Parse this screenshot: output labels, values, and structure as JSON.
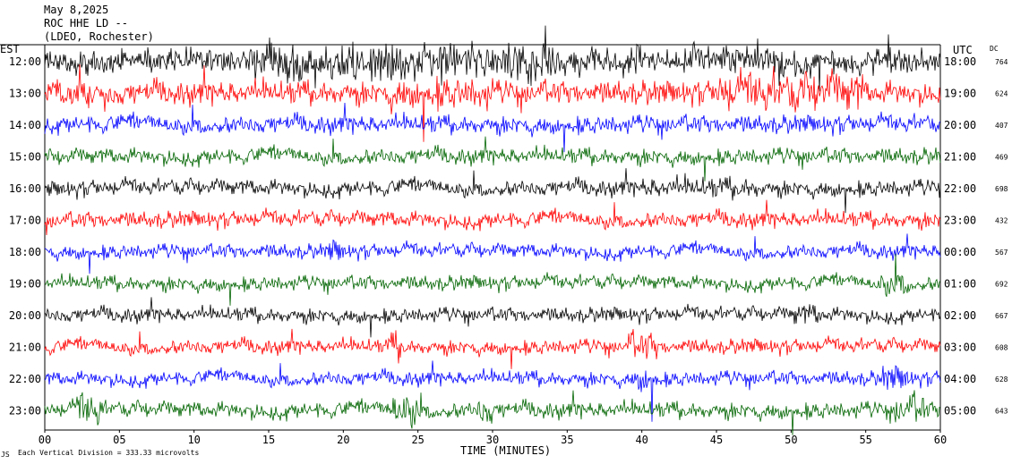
{
  "header": {
    "date": "May 8,2025",
    "station": "ROC HHE LD --",
    "location": "(LDEO, Rochester)"
  },
  "left_axis_label": "EST",
  "right_axis_label": "UTC",
  "dc_label": "DC",
  "xlabel": "TIME (MINUTES)",
  "footer": "Each Vertical Division = 333.33 microvolts",
  "logo_mark": "JS",
  "chart_data": {
    "type": "line",
    "subtype": "helicorder",
    "xlim": [
      0,
      60
    ],
    "x_ticks": [
      "00",
      "05",
      "10",
      "15",
      "20",
      "25",
      "30",
      "35",
      "40",
      "45",
      "50",
      "55",
      "60"
    ],
    "trace_colors": [
      "#000000",
      "#ff0000",
      "#0000ff",
      "#006400"
    ],
    "rows": [
      {
        "est": "12:00",
        "utc": "18:00",
        "dc": "764",
        "color": "#000000",
        "amp": 1.4,
        "bursts": [
          [
            14,
            34,
            1.6
          ],
          [
            45,
            52,
            1.3
          ]
        ]
      },
      {
        "est": "13:00",
        "utc": "19:00",
        "dc": "624",
        "color": "#ff0000",
        "amp": 1.3,
        "bursts": [
          [
            23,
            30,
            1.4
          ],
          [
            45,
            55,
            1.8
          ]
        ]
      },
      {
        "est": "14:00",
        "utc": "20:00",
        "dc": "407",
        "color": "#0000ff",
        "amp": 1.0,
        "bursts": []
      },
      {
        "est": "15:00",
        "utc": "21:00",
        "dc": "469",
        "color": "#006400",
        "amp": 0.9,
        "bursts": []
      },
      {
        "est": "16:00",
        "utc": "22:00",
        "dc": "698",
        "color": "#000000",
        "amp": 0.9,
        "bursts": [
          [
            40,
            48,
            1.3
          ]
        ]
      },
      {
        "est": "17:00",
        "utc": "23:00",
        "dc": "432",
        "color": "#ff0000",
        "amp": 0.9,
        "bursts": []
      },
      {
        "est": "18:00",
        "utc": "00:00",
        "dc": "567",
        "color": "#0000ff",
        "amp": 0.8,
        "bursts": [
          [
            19,
            20,
            1.6
          ]
        ]
      },
      {
        "est": "19:00",
        "utc": "01:00",
        "dc": "692",
        "color": "#006400",
        "amp": 0.8,
        "bursts": [
          [
            56,
            58,
            1.8
          ]
        ]
      },
      {
        "est": "20:00",
        "utc": "02:00",
        "dc": "667",
        "color": "#000000",
        "amp": 0.8,
        "bursts": [
          [
            50,
            52,
            1.6
          ]
        ]
      },
      {
        "est": "21:00",
        "utc": "03:00",
        "dc": "608",
        "color": "#ff0000",
        "amp": 0.8,
        "bursts": [
          [
            23,
            24,
            2.0
          ],
          [
            39,
            41,
            2.0
          ]
        ]
      },
      {
        "est": "22:00",
        "utc": "04:00",
        "dc": "628",
        "color": "#0000ff",
        "amp": 0.8,
        "bursts": [
          [
            39.5,
            41,
            2.0
          ],
          [
            56,
            58,
            1.8
          ]
        ]
      },
      {
        "est": "23:00",
        "utc": "05:00",
        "dc": "643",
        "color": "#006400",
        "amp": 0.9,
        "bursts": [
          [
            2,
            4,
            2.2
          ],
          [
            23,
            25,
            2.4
          ],
          [
            29,
            30,
            2.0
          ],
          [
            57,
            59,
            2.0
          ]
        ]
      }
    ],
    "row_spacing_units": 1,
    "grid": false,
    "legend": "none"
  }
}
